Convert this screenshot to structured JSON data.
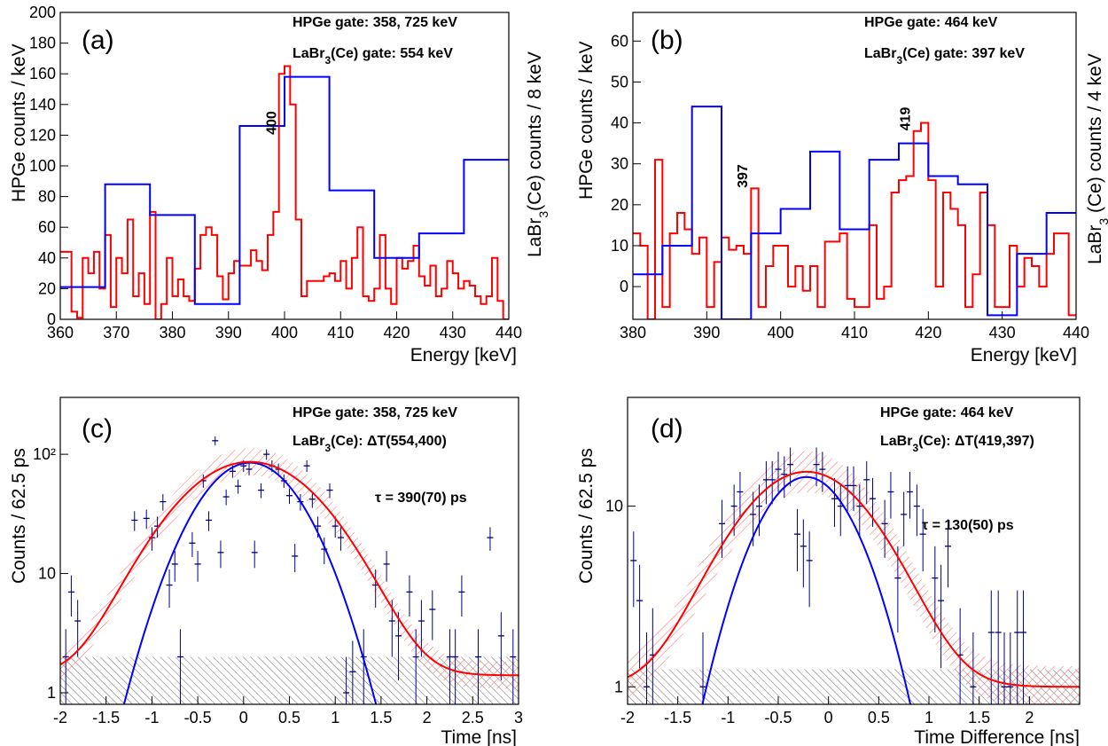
{
  "chart_data": [
    {
      "id": "a",
      "type": "line",
      "panel_label": "(a)",
      "xlabel": "Energy [keV]",
      "ylabel": "HPGe counts / keV",
      "ylabel_right": "LaBr3(Ce)  counts / 8 keV",
      "xlim": [
        360,
        440
      ],
      "ylim": [
        0,
        200
      ],
      "xticks": [
        360,
        370,
        380,
        390,
        400,
        410,
        420,
        430,
        440
      ],
      "yticks": [
        0,
        20,
        40,
        60,
        80,
        100,
        120,
        140,
        160,
        180,
        200
      ],
      "annotation_1": "HPGe gate: 358, 725 keV",
      "annotation_2": "LaBr3(Ce) gate: 554 keV",
      "peak_labels": [
        {
          "text": "400",
          "x": 398.5,
          "y": 128
        }
      ],
      "series": [
        {
          "color": "#ff0000",
          "style": "hist",
          "x": [
            360,
            361,
            362,
            363,
            364,
            365,
            366,
            367,
            368,
            369,
            370,
            371,
            372,
            373,
            374,
            375,
            376,
            377,
            378,
            379,
            380,
            381,
            382,
            383,
            384,
            385,
            386,
            387,
            388,
            389,
            390,
            391,
            392,
            393,
            394,
            395,
            396,
            397,
            398,
            399,
            400,
            401,
            402,
            403,
            404,
            405,
            406,
            407,
            408,
            409,
            410,
            411,
            412,
            413,
            414,
            415,
            416,
            417,
            418,
            419,
            420,
            421,
            422,
            423,
            424,
            425,
            426,
            427,
            428,
            429,
            430,
            431,
            432,
            433,
            434,
            435,
            436,
            437,
            438,
            439
          ],
          "values": [
            44,
            44,
            5,
            1,
            40,
            30,
            44,
            20,
            55,
            8,
            40,
            30,
            65,
            15,
            30,
            10,
            70,
            0,
            10,
            40,
            15,
            26,
            15,
            12,
            33,
            55,
            60,
            55,
            28,
            13,
            30,
            38,
            35,
            35,
            45,
            38,
            32,
            55,
            70,
            160,
            165,
            140,
            65,
            15,
            25,
            25,
            25,
            28,
            30,
            25,
            38,
            20,
            40,
            60,
            15,
            12,
            20,
            55,
            20,
            10,
            40,
            33,
            38,
            48,
            28,
            22,
            35,
            15,
            20,
            38,
            30,
            20,
            25,
            22,
            15,
            10,
            15,
            40,
            12,
            0
          ]
        },
        {
          "color": "#0000ff",
          "style": "hist",
          "x": [
            360,
            368,
            376,
            384,
            392,
            400,
            408,
            416,
            424,
            432
          ],
          "values": [
            21,
            88,
            68,
            10,
            126,
            158,
            84,
            40,
            56,
            104
          ],
          "xmax": 440
        }
      ]
    },
    {
      "id": "b",
      "type": "line",
      "panel_label": "(b)",
      "xlabel": "Energy [keV]",
      "ylabel": "HPGe counts / keV",
      "ylabel_right": "LaBr3 (Ce) counts / 4 keV",
      "xlim": [
        380,
        440
      ],
      "ylim": [
        -8,
        67
      ],
      "xticks": [
        380,
        390,
        400,
        410,
        420,
        430,
        440
      ],
      "yticks": [
        0,
        10,
        20,
        30,
        40,
        50,
        60
      ],
      "annotation_1": "HPGe gate: 464 keV",
      "annotation_2": "LaBr3(Ce) gate: 397 keV",
      "peak_labels": [
        {
          "text": "397",
          "x": 395.5,
          "y": 27
        },
        {
          "text": "419",
          "x": 417.5,
          "y": 41
        }
      ],
      "series": [
        {
          "color": "#ff0000",
          "style": "hist",
          "x": [
            380,
            381,
            382,
            383,
            384,
            385,
            386,
            387,
            388,
            389,
            390,
            391,
            392,
            393,
            394,
            395,
            396,
            397,
            398,
            399,
            400,
            401,
            402,
            403,
            404,
            405,
            406,
            407,
            408,
            409,
            410,
            411,
            412,
            413,
            414,
            415,
            416,
            417,
            418,
            419,
            420,
            421,
            422,
            423,
            424,
            425,
            426,
            427,
            428,
            429,
            430,
            431,
            432,
            433,
            434,
            435,
            436,
            437,
            438,
            439
          ],
          "values": [
            13,
            10,
            -8,
            31,
            -5,
            13,
            18,
            14,
            8,
            12,
            -5,
            6,
            12,
            9,
            10,
            8,
            24,
            -5,
            5,
            10,
            10,
            0,
            5,
            -1,
            5,
            -5,
            11,
            11,
            13,
            -3,
            -5,
            -5,
            15,
            -3,
            0,
            23,
            26,
            27,
            38,
            40,
            26,
            0,
            23,
            19,
            15,
            -5,
            3,
            23,
            15,
            -5,
            -5,
            10,
            0,
            7,
            5,
            0,
            8,
            13,
            13,
            -7
          ]
        },
        {
          "color": "#0000ff",
          "style": "hist",
          "x": [
            380,
            384,
            388,
            392,
            396,
            400,
            404,
            408,
            412,
            416,
            420,
            424,
            428,
            432,
            436
          ],
          "values": [
            3,
            10,
            44,
            -8,
            13,
            19,
            33,
            14,
            31,
            35,
            27,
            25,
            -7,
            8,
            18
          ],
          "xmax": 440
        }
      ]
    },
    {
      "id": "c",
      "type": "scatter",
      "panel_label": "(c)",
      "xlabel": "Time [ns]",
      "ylabel": "Counts / 62.5 ps",
      "xlim": [
        -2,
        3
      ],
      "ylim": [
        0.8,
        300
      ],
      "log_y": true,
      "xticks": [
        -2,
        -1.5,
        -1,
        -0.5,
        0,
        0.5,
        1,
        1.5,
        2,
        2.5,
        3
      ],
      "yticks": [
        1,
        10,
        100
      ],
      "ytick_labels": [
        "1",
        "10",
        "10²"
      ],
      "annotation_1": "HPGe gate: 358, 725 keV",
      "annotation_2": "LaBr3(Ce): ΔT(554,400)",
      "tau_label": "τ = 390(70) ps",
      "background_level": 2,
      "fit_red": {
        "amp": 85,
        "mu": 0.07,
        "sigma": 0.62,
        "offset": 1.4,
        "color": "#ff0000"
      },
      "fit_blue": {
        "amp": 85,
        "mu": 0.07,
        "sigma": 0.45,
        "color": "#0000ff"
      },
      "points": {
        "x": [
          -1.94,
          -1.88,
          -1.81,
          -1.19,
          -1.06,
          -1.0,
          -0.94,
          -0.88,
          -0.81,
          -0.75,
          -0.69,
          -0.56,
          -0.5,
          -0.44,
          -0.38,
          -0.31,
          -0.25,
          -0.19,
          -0.12,
          -0.06,
          0.0,
          0.06,
          0.12,
          0.19,
          0.25,
          0.31,
          0.38,
          0.44,
          0.5,
          0.56,
          0.62,
          0.69,
          0.75,
          0.81,
          0.88,
          0.94,
          1.0,
          1.06,
          1.12,
          1.19,
          1.31,
          1.44,
          1.56,
          1.62,
          1.69,
          1.81,
          1.88,
          1.94,
          2.06,
          2.25,
          2.31,
          2.38,
          2.56,
          2.69,
          2.81,
          2.94
        ],
        "y": [
          2,
          7,
          4,
          28,
          29,
          20,
          25,
          40,
          8,
          12,
          2,
          18,
          12,
          60,
          28,
          130,
          15,
          44,
          72,
          54,
          80,
          75,
          15,
          50,
          100,
          80,
          75,
          60,
          45,
          14,
          40,
          80,
          42,
          25,
          16,
          50,
          25,
          20,
          1,
          1.5,
          2,
          8,
          12,
          4,
          3,
          7,
          2,
          4,
          5,
          2,
          2,
          7,
          2,
          20,
          3,
          2
        ],
        "color": "#000080"
      }
    },
    {
      "id": "d",
      "type": "scatter",
      "panel_label": "(d)",
      "xlabel": "Time Difference [ns]",
      "ylabel": "Counts / 62.5 ps",
      "xlim": [
        -2,
        2.5
      ],
      "ylim": [
        0.8,
        40
      ],
      "log_y": true,
      "xticks": [
        -2,
        -1.5,
        -1,
        -0.5,
        0,
        0.5,
        1,
        1.5,
        2
      ],
      "yticks": [
        1,
        10
      ],
      "ytick_labels": [
        "1",
        "10"
      ],
      "annotation_1": "HPGe gate: 464 keV",
      "annotation_2": "LaBr3(Ce): ΔT(419,397)",
      "tau_label": "τ = 130(50) ps",
      "background_level": 1.25,
      "fit_red": {
        "amp": 14.5,
        "mu": -0.22,
        "sigma": 0.58,
        "offset": 1.0,
        "color": "#ff0000"
      },
      "fit_blue": {
        "amp": 14.5,
        "mu": -0.22,
        "sigma": 0.43,
        "color": "#0000ff"
      },
      "points": {
        "x": [
          -1.94,
          -1.88,
          -1.81,
          -1.75,
          -1.25,
          -1.06,
          -0.94,
          -0.88,
          -0.75,
          -0.69,
          -0.62,
          -0.56,
          -0.5,
          -0.44,
          -0.38,
          -0.31,
          -0.25,
          -0.19,
          -0.12,
          -0.06,
          0.06,
          0.12,
          0.19,
          0.25,
          0.31,
          0.38,
          0.44,
          0.56,
          0.62,
          0.69,
          0.75,
          0.81,
          0.88,
          0.94,
          1.06,
          1.12,
          1.19,
          1.31,
          1.44,
          1.62,
          1.69,
          1.75,
          1.81,
          1.88,
          1.94
        ],
        "y": [
          5,
          3,
          1,
          1.5,
          1,
          8,
          10,
          12,
          9,
          10,
          14,
          14,
          16,
          15,
          17,
          7,
          6,
          5,
          17,
          16,
          11,
          10,
          13,
          13,
          10,
          14,
          11,
          8,
          12,
          4,
          9,
          12,
          10,
          7,
          4,
          3,
          6,
          1.5,
          1,
          2,
          2,
          1,
          1,
          2,
          2
        ],
        "color": "#000080"
      }
    }
  ]
}
